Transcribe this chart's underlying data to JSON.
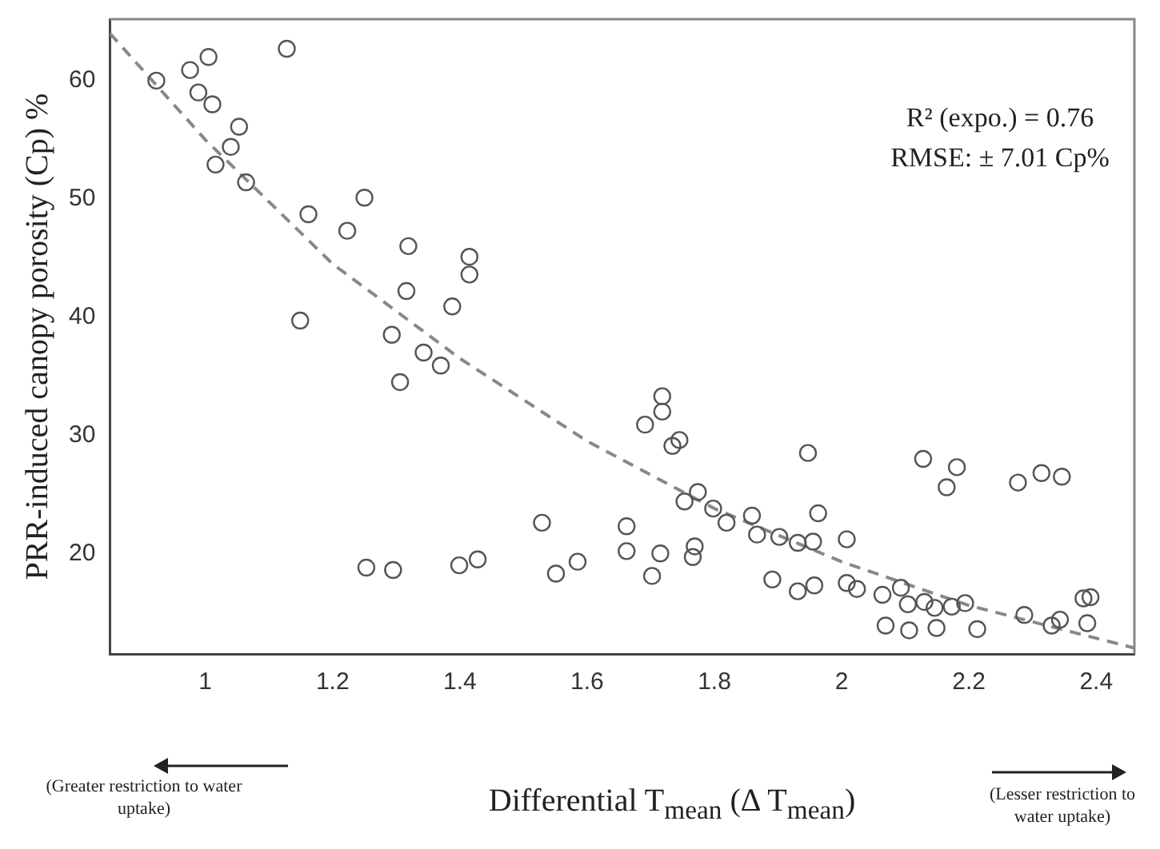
{
  "chart_data": {
    "type": "scatter",
    "xlabel": "Differential T$_{mean}$ (Δ T$_{mean}$)",
    "ylabel": "PRR-induced canopy porosity (Cp) %",
    "xlim": [
      0.85,
      2.46
    ],
    "xticks": [
      1,
      1.2,
      1.4,
      1.6,
      1.8,
      2,
      2.2,
      2.4
    ],
    "ylim": [
      11.5,
      65.2
    ],
    "yticks": [
      20,
      30,
      40,
      50,
      60
    ],
    "grid": false,
    "legend": false,
    "marker": "circle",
    "series": [
      {
        "color": "#555555",
        "x": [
          0.923,
          0.976,
          1.005,
          0.989,
          1.011,
          1.053,
          1.04,
          1.016,
          1.064,
          1.128,
          1.25,
          1.162,
          1.223,
          1.319,
          1.415,
          1.415,
          1.316,
          1.388,
          1.149,
          1.293,
          1.343,
          1.37,
          1.306,
          1.529,
          1.253,
          1.295,
          1.399,
          1.428,
          1.551,
          1.585,
          1.662,
          1.662,
          1.718,
          1.718,
          1.691,
          1.745,
          1.734,
          1.947,
          2.128,
          2.181,
          2.165,
          2.277,
          2.314,
          2.346,
          1.774,
          1.753,
          1.798,
          1.819,
          1.859,
          1.963,
          1.867,
          1.902,
          1.931,
          1.955,
          2.008,
          1.715,
          1.769,
          1.766,
          1.702,
          1.891,
          1.931,
          1.957,
          2.008,
          2.024,
          2.064,
          2.104,
          2.13,
          2.146,
          2.173,
          2.194,
          2.093,
          2.069,
          2.106,
          2.149,
          2.213,
          2.287,
          2.343,
          2.33,
          2.386,
          2.391,
          2.38
        ],
        "values": [
          60,
          60.9,
          62,
          59,
          58,
          56.1,
          54.4,
          52.9,
          51.4,
          62.7,
          50.1,
          48.7,
          47.3,
          46,
          45.1,
          43.6,
          42.2,
          40.9,
          39.7,
          38.5,
          37,
          35.9,
          34.5,
          22.6,
          18.8,
          18.6,
          19,
          19.5,
          18.3,
          19.3,
          22.3,
          20.2,
          33.3,
          32,
          30.9,
          29.6,
          29.1,
          28.5,
          28,
          27.3,
          25.6,
          26,
          26.8,
          26.5,
          25.2,
          24.4,
          23.8,
          22.6,
          23.2,
          23.4,
          21.6,
          21.4,
          20.9,
          21,
          21.2,
          20,
          20.6,
          19.7,
          18.1,
          17.8,
          16.8,
          17.3,
          17.5,
          17,
          16.5,
          15.7,
          15.9,
          15.4,
          15.5,
          15.8,
          17.1,
          13.9,
          13.5,
          13.7,
          13.6,
          14.8,
          14.4,
          13.9,
          14.1,
          16.3,
          16.2
        ]
      },
      {
        "type": "line",
        "color": "#888888",
        "marker": "none",
        "line_style": "dashed",
        "x": [
          0.85,
          1,
          1.2,
          1.4,
          1.6,
          1.8,
          2,
          2.2,
          2.46
        ],
        "values": [
          64,
          55,
          44.5,
          36.5,
          29.5,
          23.8,
          19.3,
          15.6,
          12
        ]
      }
    ],
    "annotations": [
      "R² (expo.) = 0.76",
      "RMSE: ± 7.01 Cp%",
      "(Greater restriction to water uptake)",
      "(Lesser restriction to water uptake)"
    ]
  }
}
